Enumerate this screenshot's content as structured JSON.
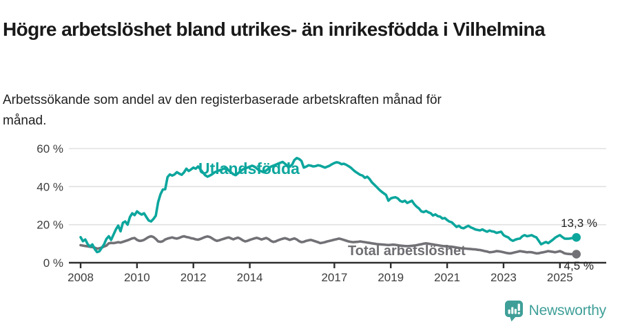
{
  "header": {
    "title": "Högre arbetslöshet bland utrikes- än inrikesfödda i Vilhelmina",
    "subtitle": "Arbetssökande som andel av den registerbaserade arbetskraften månad för månad."
  },
  "branding": {
    "logo_text": "Newsworthy",
    "logo_color": "#3f9f98"
  },
  "colors": {
    "foreign_born_line": "#0ca69d",
    "total_line": "#717176",
    "axis_text": "#3d3d3d",
    "axis_line": "#2e2e2e",
    "gridline": "#e0e0e0",
    "end_label_text": "#222222",
    "total_label_text": "#6d6d72"
  },
  "chart_data": {
    "type": "line",
    "title": "Högre arbetslöshet bland utrikes- än inrikesfödda i Vilhelmina",
    "subtitle": "Arbetssökande som andel av den registerbaserade arbetskraften månad för månad.",
    "unit": "%",
    "frequency": "monthly",
    "start": "2008-01",
    "ylim": [
      0,
      60
    ],
    "yticks": [
      0,
      20,
      40,
      60
    ],
    "ytick_labels": [
      "0 %",
      "20 %",
      "40 %",
      "60 %"
    ],
    "xticks": [
      2008,
      2010,
      2012,
      2014,
      2017,
      2019,
      2021,
      2023,
      2025
    ],
    "grid": "horizontal",
    "legend": "inline-labels",
    "series": [
      {
        "name": "Utlandsfödda",
        "color": "#0ca69d",
        "end_label": "13,3 %",
        "end_value": 13.3,
        "values": [
          13.4,
          11.3,
          12.2,
          9.8,
          8.5,
          9.6,
          7.2,
          5.6,
          6.0,
          7.8,
          9.7,
          12.5,
          13.9,
          12.0,
          14.8,
          17.5,
          19.5,
          16.5,
          21.0,
          21.7,
          20.0,
          24.0,
          26.0,
          25.0,
          27.0,
          26.0,
          25.3,
          26.0,
          24.0,
          22.2,
          21.7,
          23.0,
          24.7,
          31.9,
          36.0,
          38.5,
          38.6,
          45.0,
          46.4,
          45.8,
          46.4,
          47.6,
          46.8,
          46.2,
          47.5,
          49.4,
          48.2,
          49.0,
          50.0,
          49.4,
          50.6,
          49.0,
          47.5,
          46.0,
          45.2,
          45.8,
          46.5,
          47.5,
          48.0,
          48.5,
          49.0,
          49.5,
          50.0,
          48.5,
          47.5,
          46.5,
          46.0,
          47.0,
          48.0,
          49.0,
          49.5,
          50.0,
          50.5,
          51.0,
          50.5,
          49.5,
          48.5,
          48.0,
          47.5,
          48.5,
          49.5,
          50.5,
          51.0,
          51.5,
          52.0,
          52.5,
          53.0,
          52.0,
          51.0,
          50.5,
          51.5,
          54.0,
          55.0,
          54.5,
          53.5,
          50.0,
          50.5,
          51.2,
          51.0,
          50.6,
          50.8,
          51.2,
          51.0,
          50.5,
          50.0,
          50.5,
          51.0,
          51.8,
          52.4,
          52.8,
          52.5,
          51.8,
          52.0,
          51.5,
          50.8,
          50.0,
          48.8,
          47.8,
          47.0,
          46.2,
          45.8,
          44.6,
          45.2,
          44.0,
          42.2,
          41.0,
          39.8,
          38.5,
          37.4,
          36.5,
          35.6,
          32.6,
          33.8,
          34.2,
          34.4,
          33.8,
          32.5,
          32.0,
          32.6,
          31.4,
          32.0,
          32.6,
          30.8,
          29.5,
          28.5,
          27.0,
          26.6,
          27.2,
          26.5,
          26.0,
          24.8,
          25.4,
          24.5,
          24.2,
          23.2,
          23.5,
          22.4,
          21.6,
          21.2,
          20.0,
          18.8,
          19.4,
          18.4,
          18.1,
          18.8,
          19.4,
          18.6,
          18.1,
          17.5,
          17.2,
          17.0,
          17.5,
          16.8,
          16.3,
          16.9,
          16.5,
          16.3,
          15.7,
          16.0,
          16.3,
          14.5,
          13.8,
          13.3,
          12.1,
          11.5,
          12.1,
          12.5,
          12.7,
          13.9,
          14.5,
          13.9,
          14.2,
          14.5,
          13.8,
          13.3,
          11.5,
          9.7,
          10.3,
          10.9,
          10.3,
          11.2,
          12.1,
          13.2,
          13.9,
          14.5,
          13.5,
          12.7,
          12.6,
          12.7,
          12.9,
          13.1,
          13.3
        ]
      },
      {
        "name": "Total arbetslöshet",
        "color": "#717176",
        "end_label": "4,5 %",
        "end_value": 4.5,
        "values": [
          9.2,
          9.0,
          8.8,
          8.6,
          8.4,
          8.2,
          7.9,
          7.4,
          7.6,
          8.0,
          8.5,
          9.0,
          10.2,
          10.4,
          10.3,
          10.5,
          10.8,
          10.6,
          11.0,
          11.4,
          11.8,
          12.3,
          12.8,
          13.0,
          12.0,
          11.5,
          11.6,
          12.0,
          12.8,
          13.5,
          13.9,
          13.5,
          12.5,
          11.2,
          11.0,
          11.3,
          12.2,
          12.7,
          13.0,
          13.3,
          12.9,
          12.7,
          13.1,
          13.6,
          13.9,
          13.5,
          13.3,
          12.9,
          12.7,
          12.3,
          12.1,
          12.5,
          13.0,
          13.5,
          13.8,
          13.5,
          12.8,
          12.0,
          11.5,
          11.8,
          12.2,
          12.6,
          13.0,
          13.3,
          12.8,
          12.3,
          12.8,
          13.2,
          12.6,
          11.8,
          11.2,
          11.5,
          12.0,
          12.4,
          12.8,
          13.1,
          12.7,
          12.2,
          12.6,
          13.0,
          12.4,
          11.5,
          10.9,
          11.2,
          11.8,
          12.2,
          12.6,
          12.9,
          12.5,
          12.0,
          12.4,
          12.8,
          12.2,
          11.3,
          10.8,
          11.0,
          11.5,
          11.8,
          12.0,
          11.6,
          11.2,
          10.8,
          10.3,
          10.5,
          10.8,
          11.2,
          11.5,
          11.8,
          12.1,
          12.4,
          12.7,
          12.4,
          12.0,
          11.6,
          11.2,
          11.0,
          10.8,
          10.9,
          11.0,
          11.2,
          11.0,
          10.8,
          10.6,
          10.4,
          10.2,
          10.0,
          9.8,
          9.7,
          9.6,
          9.5,
          9.4,
          9.3,
          9.4,
          9.5,
          9.4,
          9.2,
          9.0,
          8.9,
          8.8,
          8.7,
          8.8,
          8.9,
          9.0,
          9.2,
          9.5,
          9.7,
          10.0,
          10.2,
          10.0,
          9.8,
          9.6,
          9.4,
          9.2,
          9.0,
          8.8,
          8.7,
          8.6,
          8.5,
          8.4,
          8.2,
          8.0,
          7.8,
          7.6,
          7.5,
          7.4,
          7.3,
          7.2,
          7.1,
          7.0,
          6.8,
          6.7,
          6.4,
          6.1,
          5.9,
          5.5,
          5.6,
          5.8,
          6.1,
          6.0,
          5.8,
          5.5,
          5.2,
          5.0,
          4.9,
          5.2,
          5.5,
          5.8,
          6.1,
          5.9,
          5.7,
          5.5,
          5.6,
          5.5,
          5.2,
          4.9,
          5.0,
          5.3,
          5.5,
          5.8,
          6.1,
          5.9,
          5.7,
          5.5,
          5.8,
          6.1,
          5.6,
          4.9,
          4.7,
          4.6,
          4.5,
          4.5,
          4.5
        ]
      }
    ]
  }
}
